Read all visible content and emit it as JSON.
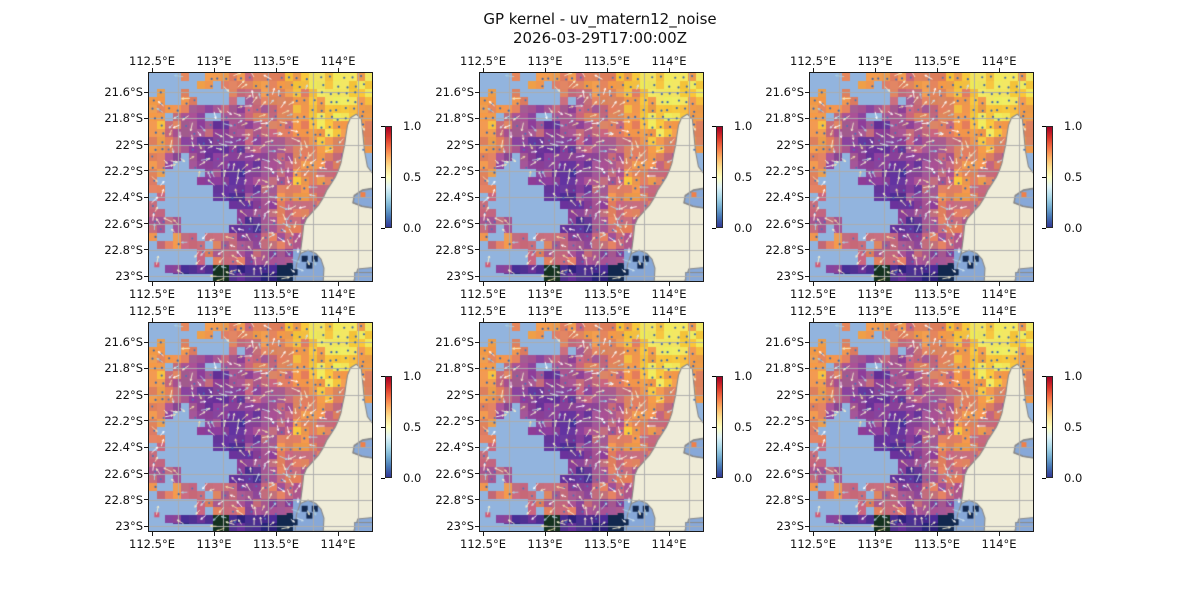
{
  "figure": {
    "title": "GP kernel - uv_matern12_noise",
    "subtitle": "2026-03-29T17:00:00Z",
    "background": "#ffffff"
  },
  "axes": {
    "x_tick_labels": [
      "112.5°E",
      "113°E",
      "113.5°E",
      "114°E"
    ],
    "y_tick_labels": [
      "21.6°S",
      "21.8°S",
      "22°S",
      "22.2°S",
      "22.4°S",
      "22.6°S",
      "22.8°S",
      "23°S"
    ]
  },
  "colorbar": {
    "tick_labels": [
      "1.0",
      "0.5",
      "0.0"
    ],
    "gradient": [
      "#a50026",
      "#d73027",
      "#f46d43",
      "#fdae61",
      "#fee090",
      "#ffffbf",
      "#e0f3f8",
      "#abd9e9",
      "#74add1",
      "#4575b4",
      "#313695"
    ]
  },
  "chart_data": {
    "type": "heatmap",
    "title": "GP kernel - uv_matern12_noise",
    "subtitle": "2026-03-29T17:00:00Z",
    "grid": {
      "rows": 2,
      "cols": 3,
      "panels_identical": true
    },
    "x_ticks_deg_east": [
      112.5,
      113.0,
      113.5,
      114.0
    ],
    "y_ticks_deg_south": [
      21.6,
      21.8,
      22.0,
      22.2,
      22.4,
      22.6,
      22.8,
      23.0
    ],
    "lon_range_deg_east": [
      112.48,
      114.27
    ],
    "lat_range_deg_south": [
      21.46,
      23.04
    ],
    "colorbar_range": [
      0.0,
      1.0
    ],
    "colorbar_ticks_top_to_bottom": [
      1.0,
      0.5,
      0.0
    ],
    "overlay": "quiver arrows colored by RdYlBu colormap over pixelated background field; gray graticule lines; land mask and no-data cells in light blue",
    "field_levels_legend": "rows top-to-bottom, 14 cols; digits 0(low)-9(high) background field level, W=masked water, B=bay water, N=navy low cell, D=darkest cell; land polygon drawn over right side",
    "field_grid": [
      "WW777667789998",
      "7W6WW556678998",
      "76544455678997",
      "75443445678876",
      "75433344567767",
      "6433333456765W",
      "6WW3323457655W",
      "5WWW223467555W",
      "5WWWW234665555",
      "44WWW224555555",
      "67555445545555",
      "WWW555444BB555",
      "W211D111NBB55B"
    ]
  },
  "map": {
    "palette": [
      "#282178",
      "#4b2d92",
      "#67349c",
      "#8a4199",
      "#a75693",
      "#c66a7d",
      "#e08160",
      "#f09a4d",
      "#f6c33c",
      "#f0e85e"
    ],
    "colors": {
      "masked": "#92b4de",
      "bay": "#87a8d8",
      "land": "#efecd8",
      "coast": "#8a8a8a",
      "gridline": "#acacac",
      "navy": "#12284f",
      "dark": "#14321f",
      "dot_high": "#3e68ac",
      "dot_mid": "#4a74b8"
    },
    "arrow_colors": [
      "#f4eecf",
      "#ffffff",
      "#cfe3ec",
      "#f0dca8",
      "#aacfe0"
    ],
    "land_polygon": [
      [
        0.925,
        0.198
      ],
      [
        0.948,
        0.222
      ],
      [
        0.955,
        0.295
      ],
      [
        0.962,
        0.375
      ],
      [
        0.975,
        0.45
      ],
      [
        1.0,
        0.485
      ],
      [
        1.0,
        0.553
      ],
      [
        0.953,
        0.562
      ],
      [
        0.916,
        0.588
      ],
      [
        0.91,
        0.625
      ],
      [
        0.95,
        0.642
      ],
      [
        1.0,
        0.65
      ],
      [
        1.0,
        0.935
      ],
      [
        0.932,
        0.942
      ],
      [
        0.914,
        1.0
      ],
      [
        0.655,
        1.0
      ],
      [
        0.663,
        0.915
      ],
      [
        0.676,
        0.862
      ],
      [
        0.686,
        0.78
      ],
      [
        0.69,
        0.735
      ],
      [
        0.703,
        0.7
      ],
      [
        0.73,
        0.668
      ],
      [
        0.757,
        0.635
      ],
      [
        0.778,
        0.6
      ],
      [
        0.793,
        0.565
      ],
      [
        0.813,
        0.532
      ],
      [
        0.832,
        0.5
      ],
      [
        0.846,
        0.467
      ],
      [
        0.857,
        0.432
      ],
      [
        0.864,
        0.392
      ],
      [
        0.873,
        0.348
      ],
      [
        0.879,
        0.3
      ],
      [
        0.886,
        0.252
      ],
      [
        0.9,
        0.215
      ]
    ],
    "bay_polygon": [
      [
        0.676,
        0.868
      ],
      [
        0.71,
        0.852
      ],
      [
        0.745,
        0.868
      ],
      [
        0.768,
        0.895
      ],
      [
        0.781,
        0.938
      ],
      [
        0.778,
        1.0
      ],
      [
        0.652,
        1.0
      ],
      [
        0.658,
        0.922
      ]
    ],
    "inlet_polygon": [
      [
        1.0,
        0.556
      ],
      [
        0.953,
        0.565
      ],
      [
        0.917,
        0.59
      ],
      [
        0.912,
        0.623
      ],
      [
        0.951,
        0.64
      ],
      [
        1.0,
        0.648
      ]
    ],
    "corner_rect": [
      0.916,
      0.957,
      0.084,
      0.043
    ],
    "overlay_cells": [
      {
        "u": 0.695,
        "v": 0.893,
        "s": 6,
        "c": "#12284f"
      },
      {
        "u": 0.716,
        "v": 0.926,
        "s": 6,
        "c": "#12284f"
      },
      {
        "u": 0.74,
        "v": 0.893,
        "s": 6,
        "c": "#12284f"
      },
      {
        "u": 0.628,
        "v": 0.928,
        "s": 6,
        "c": "#12284f"
      },
      {
        "u": 0.65,
        "v": 0.958,
        "s": 6,
        "c": "#12284f"
      },
      {
        "u": 0.955,
        "v": 0.585,
        "s": 5,
        "c": "#f08048"
      },
      {
        "u": 0.035,
        "v": 0.922,
        "s": 5,
        "c": "#cf5a78"
      }
    ]
  }
}
